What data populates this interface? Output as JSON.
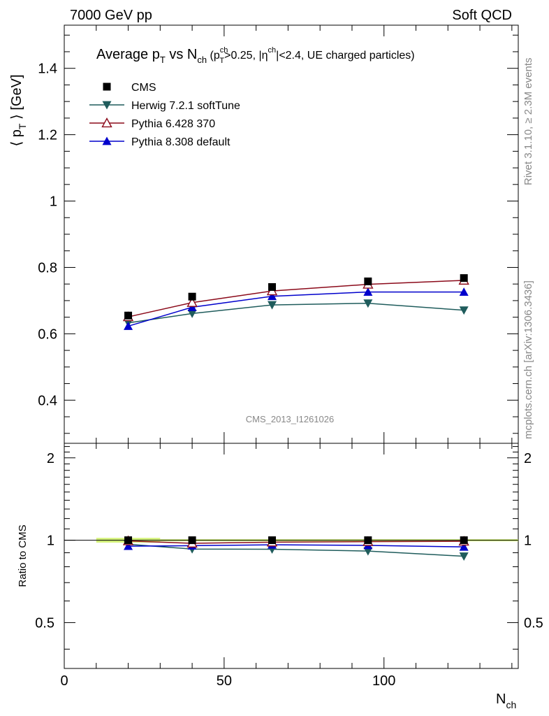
{
  "header": {
    "left": "7000 GeV pp",
    "right": "Soft QCD"
  },
  "side_text": {
    "top": "Rivet 3.1.10, ≥ 2.3M events",
    "bottom": "mcplots.cern.ch [arXiv:1306.3436]"
  },
  "analysis_id": "CMS_2013_I1261026",
  "chart_data": {
    "type": "line",
    "title": {
      "main": "Average p",
      "main_sub": "T",
      "vs": " vs N",
      "vs_sub": "ch",
      "cond_open": " (p",
      "cond_sup": "ch",
      "cond_sub": "T",
      "cond_mid": ">0.25, |η",
      "cond_sup2": "ch",
      "cond_end": "|<2.4, UE charged particles)"
    },
    "ylabel": {
      "open": "⟨ p",
      "sub": "T",
      "close": " ⟩ [GeV]"
    },
    "xlabel": {
      "main": "N",
      "sub": "ch"
    },
    "ratio_ylabel": "Ratio to CMS",
    "xlim": [
      0,
      142
    ],
    "ylim": [
      0.27,
      1.53
    ],
    "ratio_ylim": [
      0.34,
      2.26
    ],
    "x_ticks": [
      "0",
      "50",
      "100"
    ],
    "y_ticks": [
      "0.4",
      "0.6",
      "0.8",
      "1",
      "1.2",
      "1.4"
    ],
    "ratio_ticks": [
      "0.5",
      "1",
      "2"
    ],
    "x": [
      20,
      40,
      65,
      95,
      125
    ],
    "series": [
      {
        "name": "CMS",
        "marker": "square",
        "color": "#000000",
        "values": [
          0.655,
          0.712,
          0.741,
          0.758,
          0.768
        ]
      },
      {
        "name": "Herwig 7.2.1 softTune",
        "marker": "triangle-down",
        "color": "#1f5c5c",
        "values": [
          0.633,
          0.661,
          0.687,
          0.692,
          0.671
        ]
      },
      {
        "name": "Pythia 6.428 370",
        "marker": "triangle-up-open",
        "color": "#8b0a1a",
        "values": [
          0.651,
          0.694,
          0.729,
          0.749,
          0.761
        ]
      },
      {
        "name": "Pythia 8.308 default",
        "marker": "triangle-up",
        "color": "#0000cc",
        "values": [
          0.623,
          0.68,
          0.713,
          0.726,
          0.726
        ]
      }
    ],
    "legend_placement": "top-left",
    "grid": false
  }
}
